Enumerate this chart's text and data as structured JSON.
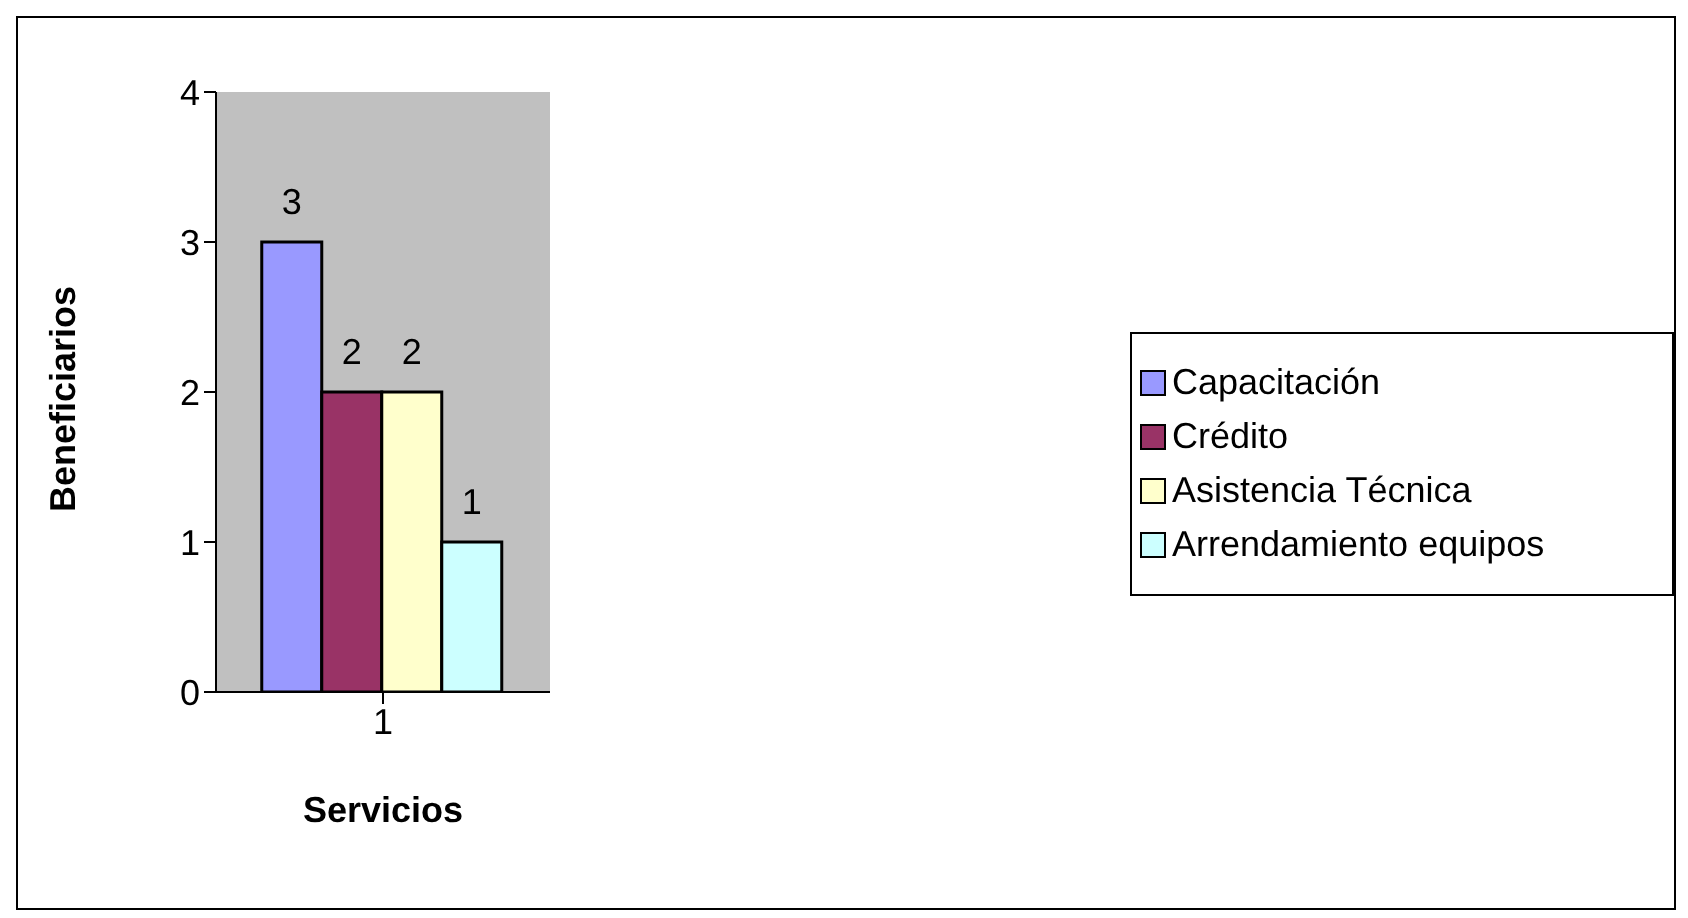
{
  "chart_data": {
    "type": "bar",
    "xlabel": "Servicios",
    "ylabel": "Beneficiarios",
    "categories": [
      "1"
    ],
    "series": [
      {
        "name": "Capacitación",
        "color": "#9999ff",
        "values": [
          3
        ]
      },
      {
        "name": "Crédito",
        "color": "#993366",
        "values": [
          2
        ]
      },
      {
        "name": "Asistencia Técnica",
        "color": "#ffffcc",
        "values": [
          2
        ]
      },
      {
        "name": "Arrendamiento equipos",
        "color": "#ccffff",
        "values": [
          1
        ]
      }
    ],
    "ylim": [
      0,
      4
    ],
    "yticks": [
      0,
      1,
      2,
      3,
      4
    ],
    "grid": false,
    "legend": "right",
    "data_labels": true
  }
}
